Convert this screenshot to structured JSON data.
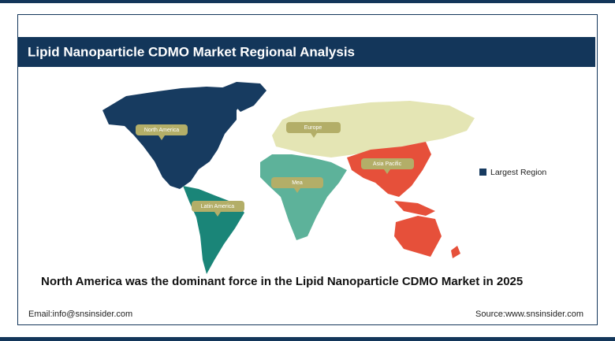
{
  "header": {
    "title": "Lipid Nanoparticle CDMO Market Regional Analysis"
  },
  "map": {
    "regions": [
      {
        "label": "North America"
      },
      {
        "label": "Europe"
      },
      {
        "label": "Asia Pacific"
      },
      {
        "label": "Mea"
      },
      {
        "label": "Latin America"
      }
    ]
  },
  "legend": {
    "label": "Largest Region"
  },
  "headline": "North America was the dominant force in the Lipid Nanoparticle CDMO Market in 2025",
  "footer": {
    "email": "Email:info@snsinsider.com",
    "source": "Source:www.snsinsider.com"
  }
}
